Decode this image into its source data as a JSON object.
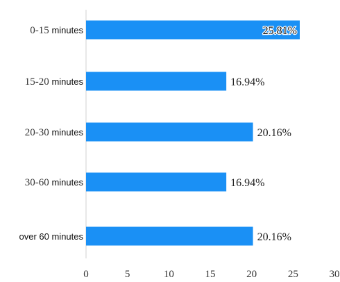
{
  "chart_data": {
    "type": "bar",
    "orientation": "horizontal",
    "title": "",
    "categories": [
      {
        "main": "0-15",
        "suffix": "minutes"
      },
      {
        "main": "15-20",
        "suffix": "minutes"
      },
      {
        "main": "20-30",
        "suffix": "minutes"
      },
      {
        "main": "30-60",
        "suffix": "minutes"
      },
      {
        "main": "",
        "suffix": "over 60 minutes"
      }
    ],
    "values": [
      25.81,
      16.94,
      20.16,
      16.94,
      20.16
    ],
    "value_labels": [
      "25.81%",
      "16.94%",
      "20.16%",
      "16.94%",
      "20.16%"
    ],
    "xlim": [
      0,
      30
    ],
    "xticks": [
      0,
      5,
      10,
      15,
      20,
      25,
      30
    ],
    "xlabel": "",
    "ylabel": "",
    "grid": false,
    "bar_color": "#1a90f5",
    "axis_color": "#d0d0d0"
  }
}
